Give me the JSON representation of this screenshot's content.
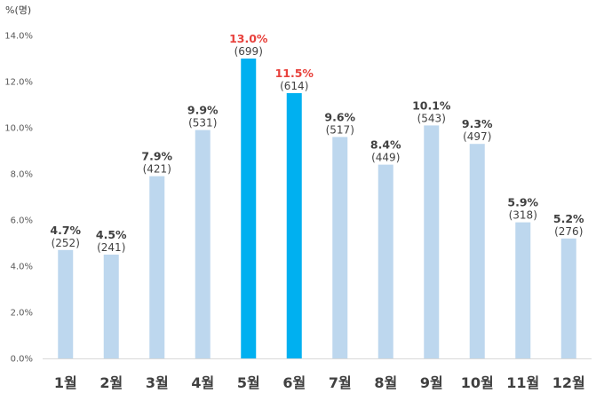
{
  "chart_data": {
    "type": "bar",
    "ylabel": "%(명)",
    "ylim": [
      0,
      14
    ],
    "yticks": [
      "0.0%",
      "2.0%",
      "4.0%",
      "6.0%",
      "8.0%",
      "10.0%",
      "12.0%",
      "14.0%"
    ],
    "categories": [
      "1월",
      "2월",
      "3월",
      "4월",
      "5월",
      "6월",
      "7월",
      "8월",
      "9월",
      "10월",
      "11월",
      "12월"
    ],
    "values": [
      4.7,
      4.5,
      7.9,
      9.9,
      13.0,
      11.5,
      9.6,
      8.4,
      10.1,
      9.3,
      5.9,
      5.2
    ],
    "value_labels": [
      "4.7%",
      "4.5%",
      "7.9%",
      "9.9%",
      "13.0%",
      "11.5%",
      "9.6%",
      "8.4%",
      "10.1%",
      "9.3%",
      "5.9%",
      "5.2%"
    ],
    "counts": [
      "(252)",
      "(241)",
      "(421)",
      "(531)",
      "(699)",
      "(614)",
      "(517)",
      "(449)",
      "(543)",
      "(497)",
      "(318)",
      "(276)"
    ],
    "highlighted": [
      "5월",
      "6월"
    ],
    "grid": false,
    "legend": "none",
    "colors": {
      "bar": "#bdd7ee",
      "highlight_bar": "#00b0f0",
      "highlight_label": "#e8413c",
      "text": "#404040",
      "axis": "#d9d9d9"
    }
  }
}
